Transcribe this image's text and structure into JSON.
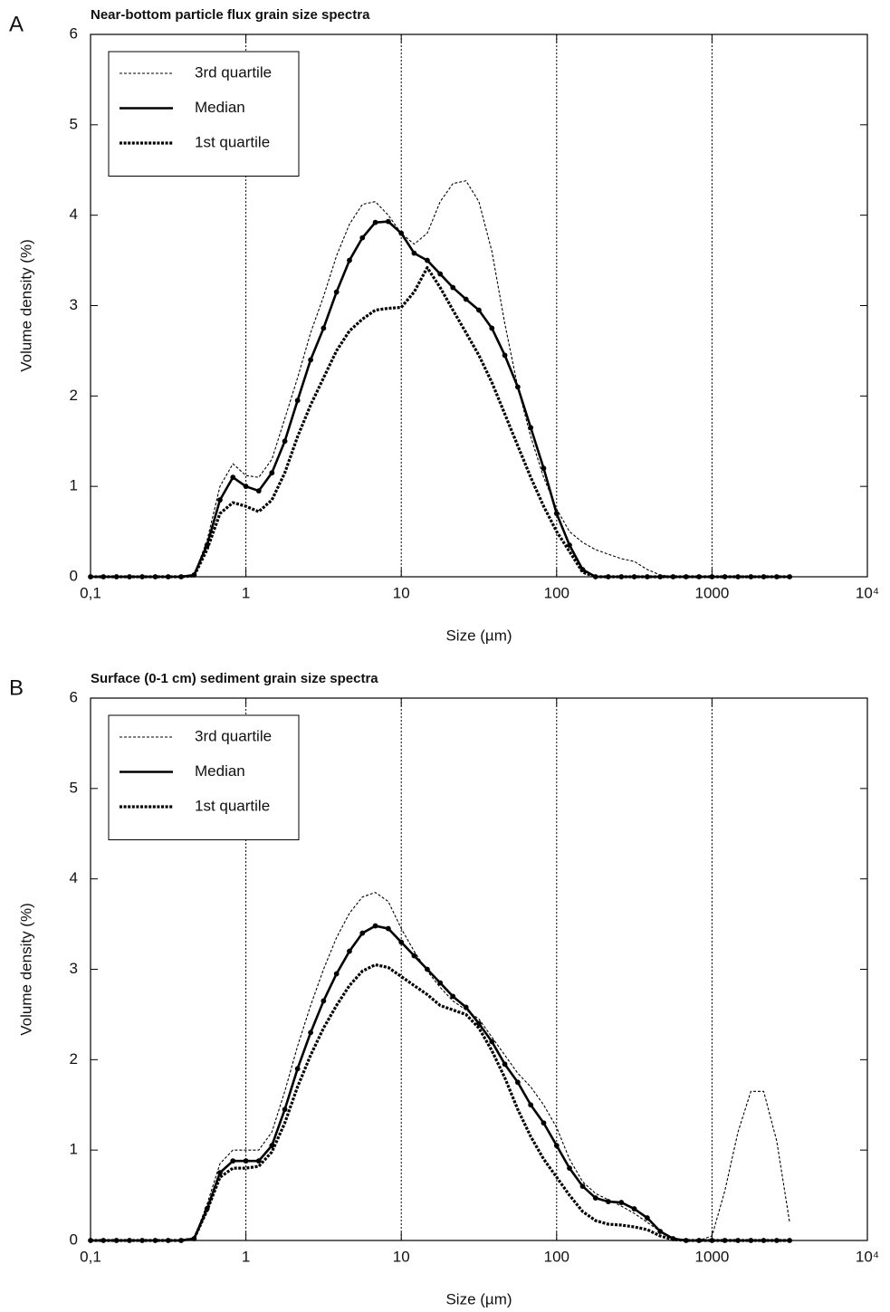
{
  "chart_data": [
    {
      "type": "line",
      "panel_label": "A",
      "title": "Near-bottom particle flux grain size spectra",
      "xlabel": "Size (µm)",
      "ylabel": "Volume density (%)",
      "xscale": "log",
      "xlim": [
        0.1,
        10000
      ],
      "ylim": [
        0,
        6
      ],
      "xticks": [
        {
          "value": 0.1,
          "label": "0,1"
        },
        1,
        10,
        100,
        1000,
        {
          "value": 10000,
          "label": "10⁴"
        }
      ],
      "yticks": [
        0,
        1,
        2,
        3,
        4,
        5,
        6
      ],
      "grid": "x",
      "legend": "upper left",
      "x": [
        0.1,
        0.121,
        0.147,
        0.178,
        0.215,
        0.261,
        0.316,
        0.383,
        0.464,
        0.562,
        0.681,
        0.825,
        1,
        1.21,
        1.47,
        1.78,
        2.15,
        2.61,
        3.16,
        3.83,
        4.64,
        5.62,
        6.81,
        8.25,
        10,
        12.1,
        14.7,
        17.8,
        21.5,
        26.1,
        31.6,
        38.3,
        46.4,
        56.2,
        68.1,
        82.5,
        100,
        121,
        147,
        178,
        215,
        261,
        316,
        383,
        464,
        562,
        681,
        825,
        1000,
        1210,
        1470,
        1780,
        2150,
        2610,
        3160
      ],
      "series": [
        {
          "name": "3rd quartile",
          "color": "#000000",
          "style": "dotted",
          "markers": false,
          "values": [
            0,
            0,
            0,
            0,
            0,
            0,
            0,
            0,
            0.02,
            0.4,
            1.0,
            1.25,
            1.12,
            1.1,
            1.3,
            1.75,
            2.2,
            2.7,
            3.1,
            3.55,
            3.9,
            4.12,
            4.15,
            4.0,
            3.8,
            3.68,
            3.8,
            4.15,
            4.35,
            4.38,
            4.15,
            3.6,
            2.8,
            2.1,
            1.55,
            1.1,
            0.75,
            0.5,
            0.38,
            0.3,
            0.25,
            0.2,
            0.17,
            0.08,
            0.02,
            0,
            0,
            0,
            0,
            0,
            0,
            0,
            0,
            0,
            0
          ]
        },
        {
          "name": "Median",
          "color": "#000000",
          "style": "solid",
          "markers": true,
          "values": [
            0,
            0,
            0,
            0,
            0,
            0,
            0,
            0,
            0.02,
            0.35,
            0.85,
            1.1,
            1.0,
            0.95,
            1.15,
            1.5,
            1.95,
            2.4,
            2.75,
            3.15,
            3.5,
            3.75,
            3.92,
            3.93,
            3.8,
            3.58,
            3.5,
            3.35,
            3.2,
            3.07,
            2.95,
            2.75,
            2.45,
            2.1,
            1.65,
            1.2,
            0.7,
            0.35,
            0.08,
            0,
            0,
            0,
            0,
            0,
            0,
            0,
            0,
            0,
            0,
            0,
            0,
            0,
            0,
            0,
            0
          ]
        },
        {
          "name": "1st quartile",
          "color": "#000000",
          "style": "dashed",
          "markers": false,
          "values": [
            0,
            0,
            0,
            0,
            0,
            0,
            0,
            0,
            0.01,
            0.3,
            0.7,
            0.82,
            0.78,
            0.72,
            0.85,
            1.15,
            1.55,
            1.9,
            2.2,
            2.5,
            2.72,
            2.85,
            2.95,
            2.97,
            2.98,
            3.15,
            3.42,
            3.2,
            2.95,
            2.7,
            2.45,
            2.15,
            1.8,
            1.45,
            1.1,
            0.78,
            0.5,
            0.28,
            0.05,
            0,
            0,
            0,
            0,
            0,
            0,
            0,
            0,
            0,
            0,
            0,
            0,
            0,
            0,
            0,
            0
          ]
        }
      ]
    },
    {
      "type": "line",
      "panel_label": "B",
      "title": "Surface (0-1 cm) sediment  grain size spectra",
      "xlabel": "Size (µm)",
      "ylabel": "Volume density (%)",
      "xscale": "log",
      "xlim": [
        0.1,
        10000
      ],
      "ylim": [
        0,
        6
      ],
      "xticks": [
        {
          "value": 0.1,
          "label": "0,1"
        },
        1,
        10,
        100,
        1000,
        {
          "value": 10000,
          "label": "10⁴"
        }
      ],
      "yticks": [
        0,
        1,
        2,
        3,
        4,
        5,
        6
      ],
      "grid": "x",
      "legend": "upper left",
      "x": [
        0.1,
        0.121,
        0.147,
        0.178,
        0.215,
        0.261,
        0.316,
        0.383,
        0.464,
        0.562,
        0.681,
        0.825,
        1,
        1.21,
        1.47,
        1.78,
        2.15,
        2.61,
        3.16,
        3.83,
        4.64,
        5.62,
        6.81,
        8.25,
        10,
        12.1,
        14.7,
        17.8,
        21.5,
        26.1,
        31.6,
        38.3,
        46.4,
        56.2,
        68.1,
        82.5,
        100,
        121,
        147,
        178,
        215,
        261,
        316,
        383,
        464,
        562,
        681,
        825,
        1000,
        1210,
        1470,
        1780,
        2150,
        2610,
        3160
      ],
      "series": [
        {
          "name": "3rd quartile",
          "color": "#000000",
          "style": "dotted",
          "markers": false,
          "values": [
            0,
            0,
            0,
            0,
            0,
            0,
            0,
            0,
            0.02,
            0.4,
            0.85,
            1.0,
            1.0,
            1.0,
            1.2,
            1.65,
            2.15,
            2.6,
            3.0,
            3.35,
            3.62,
            3.8,
            3.85,
            3.75,
            3.45,
            3.2,
            2.98,
            2.8,
            2.65,
            2.55,
            2.45,
            2.25,
            2.05,
            1.85,
            1.7,
            1.5,
            1.25,
            0.9,
            0.65,
            0.52,
            0.45,
            0.38,
            0.3,
            0.2,
            0.1,
            0.03,
            0,
            0,
            0.05,
            0.55,
            1.2,
            1.65,
            1.65,
            1.1,
            0.2
          ]
        },
        {
          "name": "Median",
          "color": "#000000",
          "style": "solid",
          "markers": true,
          "values": [
            0,
            0,
            0,
            0,
            0,
            0,
            0,
            0,
            0.02,
            0.35,
            0.75,
            0.88,
            0.88,
            0.88,
            1.05,
            1.45,
            1.9,
            2.3,
            2.65,
            2.95,
            3.2,
            3.4,
            3.48,
            3.45,
            3.3,
            3.15,
            3.0,
            2.85,
            2.7,
            2.58,
            2.4,
            2.2,
            1.95,
            1.75,
            1.5,
            1.3,
            1.05,
            0.8,
            0.6,
            0.47,
            0.43,
            0.42,
            0.35,
            0.25,
            0.1,
            0.02,
            0,
            0,
            0,
            0,
            0,
            0,
            0,
            0,
            0
          ]
        },
        {
          "name": "1st quartile",
          "color": "#000000",
          "style": "dashed",
          "markers": false,
          "values": [
            0,
            0,
            0,
            0,
            0,
            0,
            0,
            0,
            0.02,
            0.33,
            0.7,
            0.8,
            0.8,
            0.82,
            0.98,
            1.3,
            1.7,
            2.05,
            2.35,
            2.6,
            2.82,
            2.98,
            3.05,
            3.02,
            2.92,
            2.82,
            2.72,
            2.6,
            2.55,
            2.5,
            2.35,
            2.1,
            1.8,
            1.45,
            1.15,
            0.9,
            0.7,
            0.5,
            0.32,
            0.22,
            0.18,
            0.17,
            0.15,
            0.12,
            0.05,
            0.01,
            0,
            0,
            0,
            0,
            0,
            0,
            0,
            0,
            0
          ]
        }
      ]
    }
  ]
}
